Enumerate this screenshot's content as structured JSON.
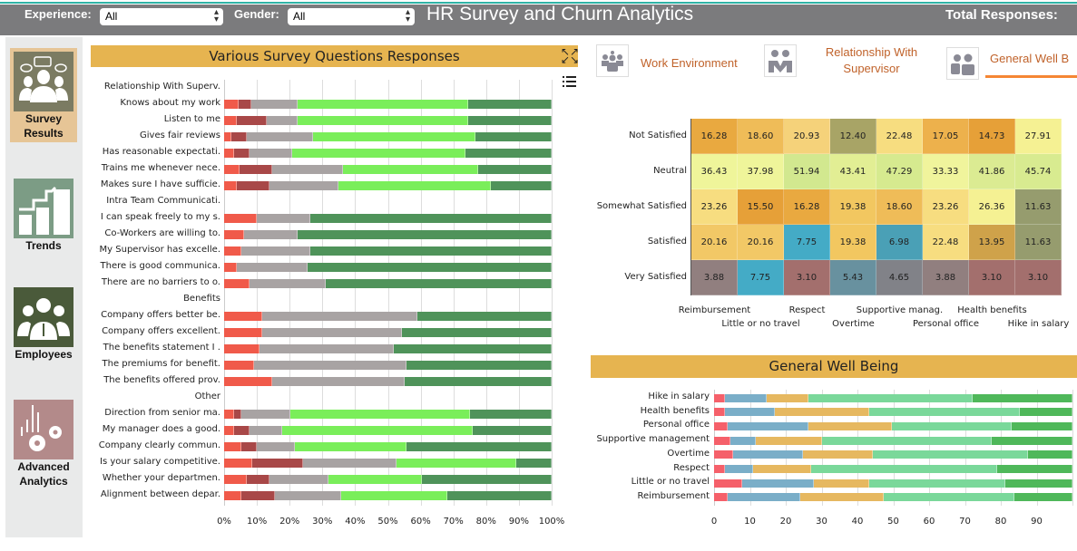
{
  "header": {
    "experience_label": "Experience:",
    "experience_value": "All",
    "gender_label": "Gender:",
    "gender_value": "All",
    "title": "HR Survey and Churn Analytics",
    "total_responses_label": "Total Responses:"
  },
  "sidebar": {
    "items": [
      {
        "label1": "Survey",
        "label2": "Results",
        "icon": "survey-people-icon",
        "color": "#7b7b62",
        "active": true
      },
      {
        "label1": "Trends",
        "label2": "",
        "icon": "trends-chart-icon",
        "color": "#7c9c85"
      },
      {
        "label1": "Employees",
        "label2": "",
        "icon": "employees-icon",
        "color": "#4a5a3a"
      },
      {
        "label1": "Advanced",
        "label2": "Analytics",
        "icon": "analytics-gears-icon",
        "color": "#b38a8a"
      }
    ]
  },
  "survey_panel": {
    "title": "Various Survey Questions Responses",
    "expand_icon": "expand-icon",
    "list_icon": "list-icon"
  },
  "tabs": [
    {
      "label": "Work Environment",
      "icon": "team-icon"
    },
    {
      "label": "Relationship With Supervisor",
      "icon": "pair-icon"
    },
    {
      "label": "General Well B",
      "icon": "duo-icon",
      "active": true
    }
  ],
  "colors": {
    "accent_bar": "#e6b450",
    "tab_text": "#c0622a",
    "tab_active_underline": "#f58634"
  },
  "chart_data": [
    {
      "type": "bar",
      "orientation": "horizontal",
      "stacked": "percent",
      "xlim": [
        0,
        100
      ],
      "tick_labels": [
        "0%",
        "10%",
        "20%",
        "30%",
        "40%",
        "50%",
        "60%",
        "70%",
        "80%",
        "90%",
        "100%"
      ],
      "grid": true,
      "series_colors": [
        "#f05a4a",
        "#a84848",
        "#a8a3a3",
        "#7aee5a",
        "#4f935a"
      ],
      "categories": [
        {
          "label": "Relationship With Superv.",
          "values": null
        },
        {
          "label": "Knows about my work",
          "values": [
            4.4,
            4.0,
            14.0,
            52.1,
            25.5
          ]
        },
        {
          "label": "Listen to me",
          "values": [
            3.9,
            9.0,
            9.5,
            52.1,
            25.5
          ]
        },
        {
          "label": "Gives fair reviews",
          "values": [
            2.2,
            4.6,
            20.3,
            49.7,
            23.2
          ]
        },
        {
          "label": "Has reasonable expectati.",
          "values": [
            3.0,
            4.8,
            13.1,
            52.9,
            26.2
          ]
        },
        {
          "label": "Trains me whenever nece.",
          "values": [
            4.6,
            10.1,
            21.6,
            41.4,
            22.3
          ]
        },
        {
          "label": "Makes sure I have sufficie.",
          "values": [
            3.9,
            10.0,
            21.0,
            46.6,
            18.5
          ]
        },
        {
          "label": "Intra Team Communicati.",
          "values": null
        },
        {
          "label": "I can speak freely to my s.",
          "values": [
            10.0,
            0,
            16.4,
            0,
            73.6
          ]
        },
        {
          "label": "Co-Workers are willing to.",
          "values": [
            6.1,
            0,
            16.4,
            0,
            77.5
          ]
        },
        {
          "label": "My Supervisor has excelle.",
          "values": [
            5.3,
            0,
            21.1,
            0,
            73.6
          ]
        },
        {
          "label": "There is good communica.",
          "values": [
            3.9,
            0,
            21.7,
            0,
            74.4
          ]
        },
        {
          "label": "There are no barriers to o.",
          "values": [
            7.7,
            0,
            23.4,
            0,
            68.9
          ]
        },
        {
          "label": "Benefits",
          "values": null
        },
        {
          "label": "Company offers better be.",
          "values": [
            11.5,
            0,
            47.4,
            0,
            41.1
          ]
        },
        {
          "label": "Company offers excellent.",
          "values": [
            11.5,
            0,
            42.9,
            0,
            45.6
          ]
        },
        {
          "label": "The benefits statement I .",
          "values": [
            10.7,
            0,
            41.2,
            0,
            48.1
          ]
        },
        {
          "label": "The premiums for benefit.",
          "values": [
            9.1,
            0,
            46.7,
            0,
            44.2
          ]
        },
        {
          "label": "The benefits offered prov.",
          "values": [
            14.6,
            0,
            40.5,
            0,
            44.9
          ]
        },
        {
          "label": "Other",
          "values": null
        },
        {
          "label": "Direction from senior ma.",
          "values": [
            3.0,
            2.2,
            14.9,
            55.1,
            24.8
          ]
        },
        {
          "label": "My manager does a good.",
          "values": [
            3.0,
            4.8,
            9.9,
            58.3,
            24.0
          ]
        },
        {
          "label": "Company clearly commun.",
          "values": [
            5.3,
            4.7,
            11.6,
            34.2,
            44.2
          ]
        },
        {
          "label": "Is your salary competitive.",
          "values": [
            8.5,
            15.5,
            28.6,
            36.7,
            10.7
          ]
        },
        {
          "label": "Whether your departmen.",
          "values": [
            6.9,
            7.0,
            17.9,
            28.7,
            39.5
          ]
        },
        {
          "label": "Alignment between depar.",
          "values": [
            5.3,
            10.1,
            20.2,
            32.6,
            31.8
          ]
        }
      ]
    },
    {
      "type": "heatmap",
      "rows": [
        "Not Satisfied",
        "Neutral",
        "Somewhat Satisfied",
        "Satisfied",
        "Very Satisfied"
      ],
      "columns": [
        "Reimbursement",
        "Little or no travel",
        "Respect",
        "Overtime",
        "Supportive manag.",
        "Personal office",
        "Health benefits",
        "Hike in salary"
      ],
      "values": [
        [
          "16.28",
          "18.60",
          "20.93",
          "12.40",
          "22.48",
          "17.05",
          "14.73",
          "27.91"
        ],
        [
          "36.43",
          "37.98",
          "51.94",
          "43.41",
          "47.29",
          "33.33",
          "41.86",
          "45.74"
        ],
        [
          "23.26",
          "15.50",
          "16.28",
          "19.38",
          "18.60",
          "23.26",
          "26.36",
          "11.63"
        ],
        [
          "20.16",
          "20.16",
          "7.75",
          "19.38",
          "6.98",
          "22.48",
          "13.95",
          "11.63"
        ],
        [
          "3.88",
          "7.75",
          "3.10",
          "5.43",
          "4.65",
          "3.88",
          "3.10",
          "3.10"
        ]
      ],
      "cell_colors": [
        [
          "#e9a940",
          "#efbc58",
          "#f5d27a",
          "#a8a466",
          "#f7dd80",
          "#edb14c",
          "#e6a038",
          "#f5f193"
        ],
        [
          "#eff59a",
          "#eff59a",
          "#d2e88f",
          "#e2ee94",
          "#d6ea8f",
          "#f0f49c",
          "#dbeb92",
          "#d8eb90"
        ],
        [
          "#f7dd80",
          "#e6a038",
          "#e9a940",
          "#f2c760",
          "#efbc58",
          "#f7dd80",
          "#f5f193",
          "#969c6e"
        ],
        [
          "#f2c866",
          "#f2c866",
          "#44abc6",
          "#f2c760",
          "#4aa0b6",
          "#f7dd80",
          "#cfa24a",
          "#969c6e"
        ],
        [
          "#917f7f",
          "#44abc6",
          "#a36f6d",
          "#68919f",
          "#818288",
          "#917f7f",
          "#a36f6d",
          "#a36f6d"
        ]
      ]
    },
    {
      "type": "bar",
      "orientation": "horizontal",
      "stacked": true,
      "title": "General Well Being",
      "xlim": [
        0,
        100
      ],
      "tick_labels": [
        "0",
        "10",
        "20",
        "30",
        "40",
        "50",
        "60",
        "70",
        "80",
        "90"
      ],
      "grid": true,
      "series_colors": [
        "#f5606a",
        "#7aaec8",
        "#e6b860",
        "#7ad89a",
        "#4fb85a"
      ],
      "categories": [
        {
          "label": "Hike in salary",
          "values": [
            3.1,
            11.63,
            11.63,
            45.74,
            27.91
          ]
        },
        {
          "label": "Health benefits",
          "values": [
            3.1,
            13.95,
            26.36,
            41.86,
            14.73
          ]
        },
        {
          "label": "Personal office",
          "values": [
            3.88,
            22.48,
            23.26,
            33.33,
            17.05
          ]
        },
        {
          "label": "Supportive management",
          "values": [
            4.65,
            6.98,
            18.6,
            47.29,
            22.48
          ]
        },
        {
          "label": "Overtime",
          "values": [
            5.43,
            19.38,
            19.38,
            43.41,
            12.4
          ]
        },
        {
          "label": "Respect",
          "values": [
            3.1,
            7.75,
            16.28,
            51.94,
            20.93
          ]
        },
        {
          "label": "Little or no travel",
          "values": [
            7.75,
            20.16,
            15.5,
            37.98,
            18.6
          ]
        },
        {
          "label": "Reimbursement",
          "values": [
            3.88,
            20.16,
            23.26,
            36.43,
            16.28
          ]
        }
      ]
    }
  ]
}
